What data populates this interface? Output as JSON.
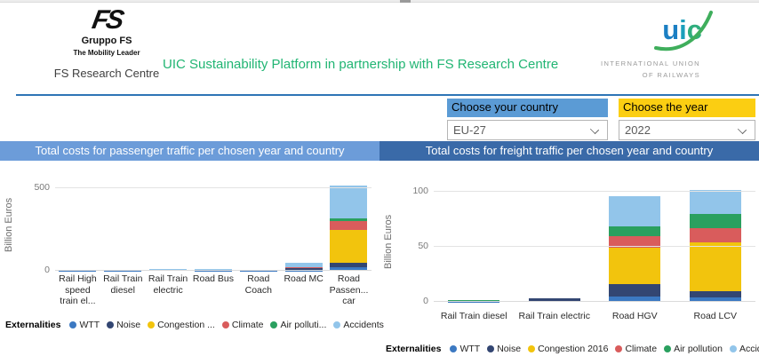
{
  "header": {
    "fs_logo": {
      "mark": "FS",
      "brand": "Gruppo FS",
      "tagline": "The Mobility Leader",
      "subbrand": "FS Research Centre"
    },
    "title": "UIC Sustainability Platform in partnership with FS Research Centre",
    "uic_logo": {
      "letter_u": "u",
      "letter_i": "i",
      "letter_c": "c",
      "caption_line1": "INTERNATIONAL UNION",
      "caption_line2": "OF RAILWAYS"
    }
  },
  "filters": {
    "country": {
      "label": "Choose your country",
      "value": "EU-27"
    },
    "year": {
      "label": "Choose the year",
      "value": "2022"
    }
  },
  "colors": {
    "accent_divider": "#2E75B6",
    "country_filter_bg": "#5B9BD5",
    "year_filter_bg": "#FBCE12",
    "passenger_titlebar_bg": "#6C9CD9",
    "freight_titlebar_bg": "#3A6AA8",
    "title_text_green": "#21B573"
  },
  "chart_data": [
    {
      "id": "passenger",
      "type": "bar",
      "stacked": true,
      "title": "Total costs for passenger traffic per chosen year and country",
      "ylabel": "Billion Euros",
      "ylim": [
        0,
        560
      ],
      "yticks": [
        0,
        500
      ],
      "grid": true,
      "legend_position": "bottom",
      "legend_title": "Externalities",
      "categories": [
        "Rail High speed train el...",
        "Rail Train diesel",
        "Rail Train electric",
        "Road Bus",
        "Road Coach",
        "Road MC",
        "Road Passen... car"
      ],
      "series": [
        {
          "name": "WTT",
          "label": "WTT",
          "color": "#3C79C2",
          "values": [
            2,
            2,
            4,
            1,
            1,
            2,
            21
          ]
        },
        {
          "name": "Noise",
          "label": "Noise",
          "color": "#334672",
          "values": [
            1,
            1,
            2,
            1,
            1,
            15,
            27
          ]
        },
        {
          "name": "Congestion 2016",
          "label": "Congestion ...",
          "color": "#F2C40D",
          "values": [
            0,
            0,
            0,
            4,
            2,
            1,
            200
          ]
        },
        {
          "name": "Climate",
          "label": "Climate",
          "color": "#D95C5C",
          "values": [
            0.5,
            1,
            1,
            1,
            1,
            2,
            54
          ]
        },
        {
          "name": "Air pollution",
          "label": "Air polluti...",
          "color": "#2AA05F",
          "values": [
            0.5,
            1,
            0,
            1,
            0,
            1,
            18
          ]
        },
        {
          "name": "Accidents",
          "label": "Accidents",
          "color": "#92C5EA",
          "values": [
            1,
            1,
            3,
            1,
            1,
            27,
            197
          ]
        }
      ]
    },
    {
      "id": "freight",
      "type": "bar",
      "stacked": true,
      "title": "Total costs for freight traffic per chosen year and country",
      "ylabel": "Billion Euros",
      "ylim": [
        0,
        110
      ],
      "yticks": [
        0,
        50,
        100
      ],
      "grid": true,
      "legend_position": "bottom",
      "legend_title": "Externalities",
      "categories": [
        "Rail Train diesel",
        "Rail Train electric",
        "Road HGV",
        "Road LCV"
      ],
      "series": [
        {
          "name": "WTT",
          "label": "WTT",
          "color": "#3C79C2",
          "values": [
            0.4,
            1,
            5,
            4
          ]
        },
        {
          "name": "Noise",
          "label": "Noise",
          "color": "#334672",
          "values": [
            0.2,
            2,
            11,
            6
          ]
        },
        {
          "name": "Congestion 2016",
          "label": "Congestion 2016",
          "color": "#F2C40D",
          "values": [
            0,
            0,
            33,
            44
          ]
        },
        {
          "name": "Climate",
          "label": "Climate",
          "color": "#D95C5C",
          "values": [
            0.3,
            0,
            11,
            13
          ]
        },
        {
          "name": "Air pollution",
          "label": "Air pollution",
          "color": "#2AA05F",
          "values": [
            0.5,
            0,
            9,
            13
          ]
        },
        {
          "name": "Accidents",
          "label": "Accidents",
          "color": "#92C5EA",
          "values": [
            0.1,
            0,
            27,
            22
          ]
        }
      ]
    }
  ]
}
